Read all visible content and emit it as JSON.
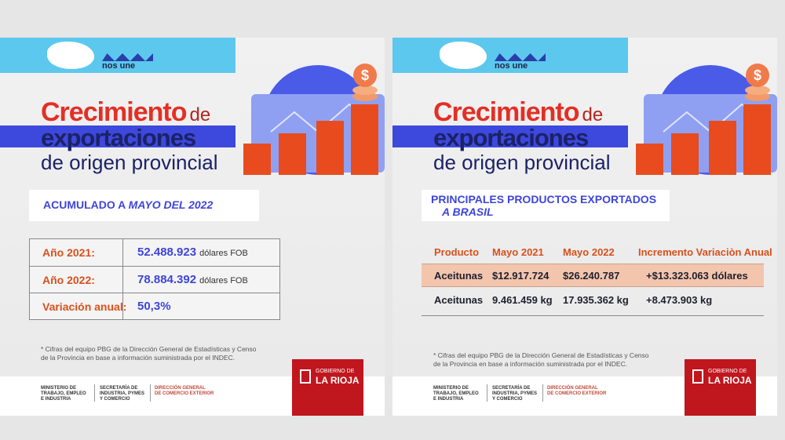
{
  "panels": [
    {
      "header": {
        "slogan": "nos une"
      },
      "title": {
        "highlight": "Crecimiento",
        "connector": "de",
        "line2": "exportaciones",
        "line3": "de origen provincial"
      },
      "subtitle": {
        "lead": "ACUMULADO A ",
        "emphasis": "MAYO DEL 2022"
      },
      "table": {
        "rows": [
          [
            "Año 2021:",
            "52.488.923",
            "dólares FOB"
          ],
          [
            "Año 2022:",
            "78.884.392",
            "dólares FOB"
          ],
          [
            "Variación anual:",
            "50,3%"
          ]
        ]
      },
      "footnote": [
        "* Cifras del equipo PBG de la Dirección General de Estadísticas y Censo",
        "de la Provincia en base a información suministrada por el INDEC."
      ],
      "footer": {
        "ministry": [
          "MINISTERIO DE",
          "TRABAJO, EMPLEO",
          "E INDUSTRIA"
        ],
        "secretariat": [
          "SECRETARÍA DE",
          "INDUSTRIA, PYMES",
          "Y COMERCIO"
        ],
        "direction": [
          "DIRECCIÓN GENERAL",
          "DE COMERCIO EXTERIOR"
        ],
        "government": [
          "GOBIERNO DE",
          "LA RIOJA"
        ]
      }
    },
    {
      "header": {
        "slogan": "nos une"
      },
      "title": {
        "highlight": "Crecimiento",
        "connector": "de",
        "line2": "exportaciones",
        "line3": "de origen provincial"
      },
      "subtitle": {
        "lead": "PRINCIPALES PRODUCTOS EXPORTADOS",
        "emphasis": "A BRASIL"
      },
      "table": {
        "header": [
          "Producto",
          "Mayo 2021",
          "Mayo 2022",
          "Incremento Variaciòn Anual"
        ],
        "rows": [
          [
            "Aceitunas",
            "$12.917.724",
            "$26.240.787",
            "+$13.323.063 dólares"
          ],
          [
            "Aceitunas",
            "9.461.459 kg",
            "17.935.362 kg",
            "+8.473.903 kg"
          ]
        ]
      },
      "footnote": [
        "* Cifras del equipo PBG de la Dirección General de Estadísticas y Censo",
        "de la Provincia en base a información suministrada por el INDEC."
      ],
      "footer": {
        "ministry": [
          "MINISTERIO DE",
          "TRABAJO, EMPLEO",
          "E INDUSTRIA"
        ],
        "secretariat": [
          "SECRETARÍA DE",
          "INDUSTRIA, PYMES",
          "Y COMERCIO"
        ],
        "direction": [
          "DIRECCIÓN GENERAL",
          "DE COMERCIO EXTERIOR"
        ],
        "government": [
          "GOBIERNO DE",
          "LA RIOJA"
        ]
      }
    }
  ]
}
